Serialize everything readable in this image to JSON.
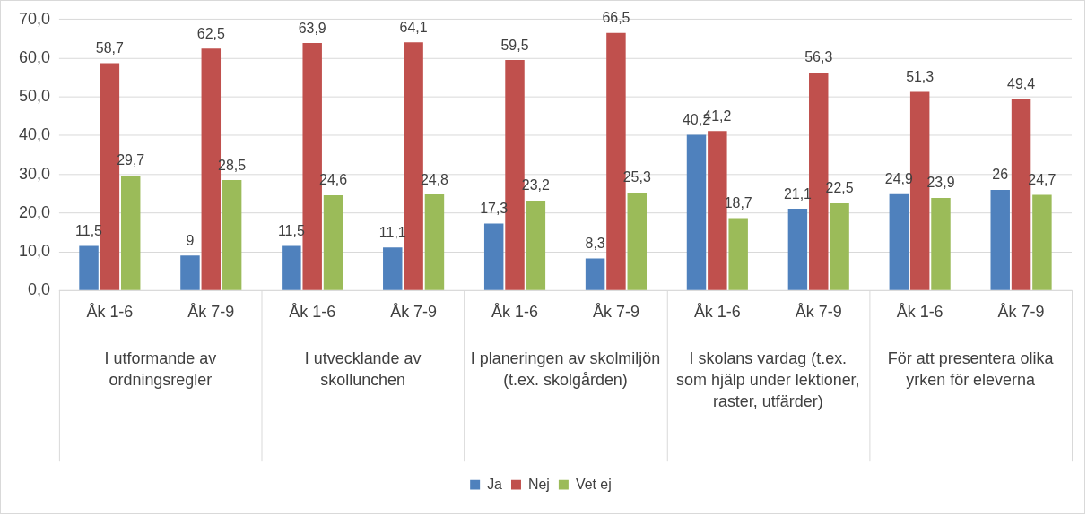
{
  "chart_data": {
    "type": "bar",
    "categories": [
      "Åk 1-6",
      "Åk 7-9",
      "Åk 1-6",
      "Åk 7-9",
      "Åk 1-6",
      "Åk 7-9",
      "Åk 1-6",
      "Åk 7-9",
      "Åk 1-6",
      "Åk 7-9"
    ],
    "annotations": [
      "I utformande av ordningsregler",
      "I utvecklande av skollunchen",
      "I planeringen av skolmiljön (t.ex. skolgården)",
      "I skolans vardag (t.ex. som hjälp under lektioner, raster, utfärder)",
      "För att presentera olika yrken för eleverna"
    ],
    "series": [
      {
        "name": "Ja",
        "color": "#4f81bd",
        "values": [
          11.5,
          9,
          11.5,
          11.1,
          17.3,
          8.3,
          40.2,
          21.1,
          24.9,
          26
        ],
        "value_labels": [
          "11,5",
          "9",
          "11,5",
          "11,1",
          "17,3",
          "8,3",
          "40,2",
          "21,1",
          "24,9",
          "26"
        ]
      },
      {
        "name": "Nej",
        "color": "#c0504d",
        "values": [
          58.7,
          62.5,
          63.9,
          64.1,
          59.5,
          66.5,
          41.2,
          56.3,
          51.3,
          49.4
        ],
        "value_labels": [
          "58,7",
          "62,5",
          "63,9",
          "64,1",
          "59,5",
          "66,5",
          "41,2",
          "56,3",
          "51,3",
          "49,4"
        ]
      },
      {
        "name": "Vet ej",
        "color": "#9bbb59",
        "values": [
          29.7,
          28.5,
          24.6,
          24.8,
          23.2,
          25.3,
          18.7,
          22.5,
          23.9,
          24.7
        ],
        "value_labels": [
          "29,7",
          "28,5",
          "24,6",
          "24,8",
          "23,2",
          "25,3",
          "18,7",
          "22,5",
          "23,9",
          "24,7"
        ]
      }
    ],
    "ylim": [
      0,
      70
    ],
    "yticks": [
      {
        "value": 0,
        "label": "0,0"
      },
      {
        "value": 10,
        "label": "10,0"
      },
      {
        "value": 20,
        "label": "20,0"
      },
      {
        "value": 30,
        "label": "30,0"
      },
      {
        "value": 40,
        "label": "40,0"
      },
      {
        "value": 50,
        "label": "50,0"
      },
      {
        "value": 60,
        "label": "60,0"
      },
      {
        "value": 70,
        "label": "70,0"
      }
    ],
    "grid": "y",
    "legend": "bottom"
  }
}
